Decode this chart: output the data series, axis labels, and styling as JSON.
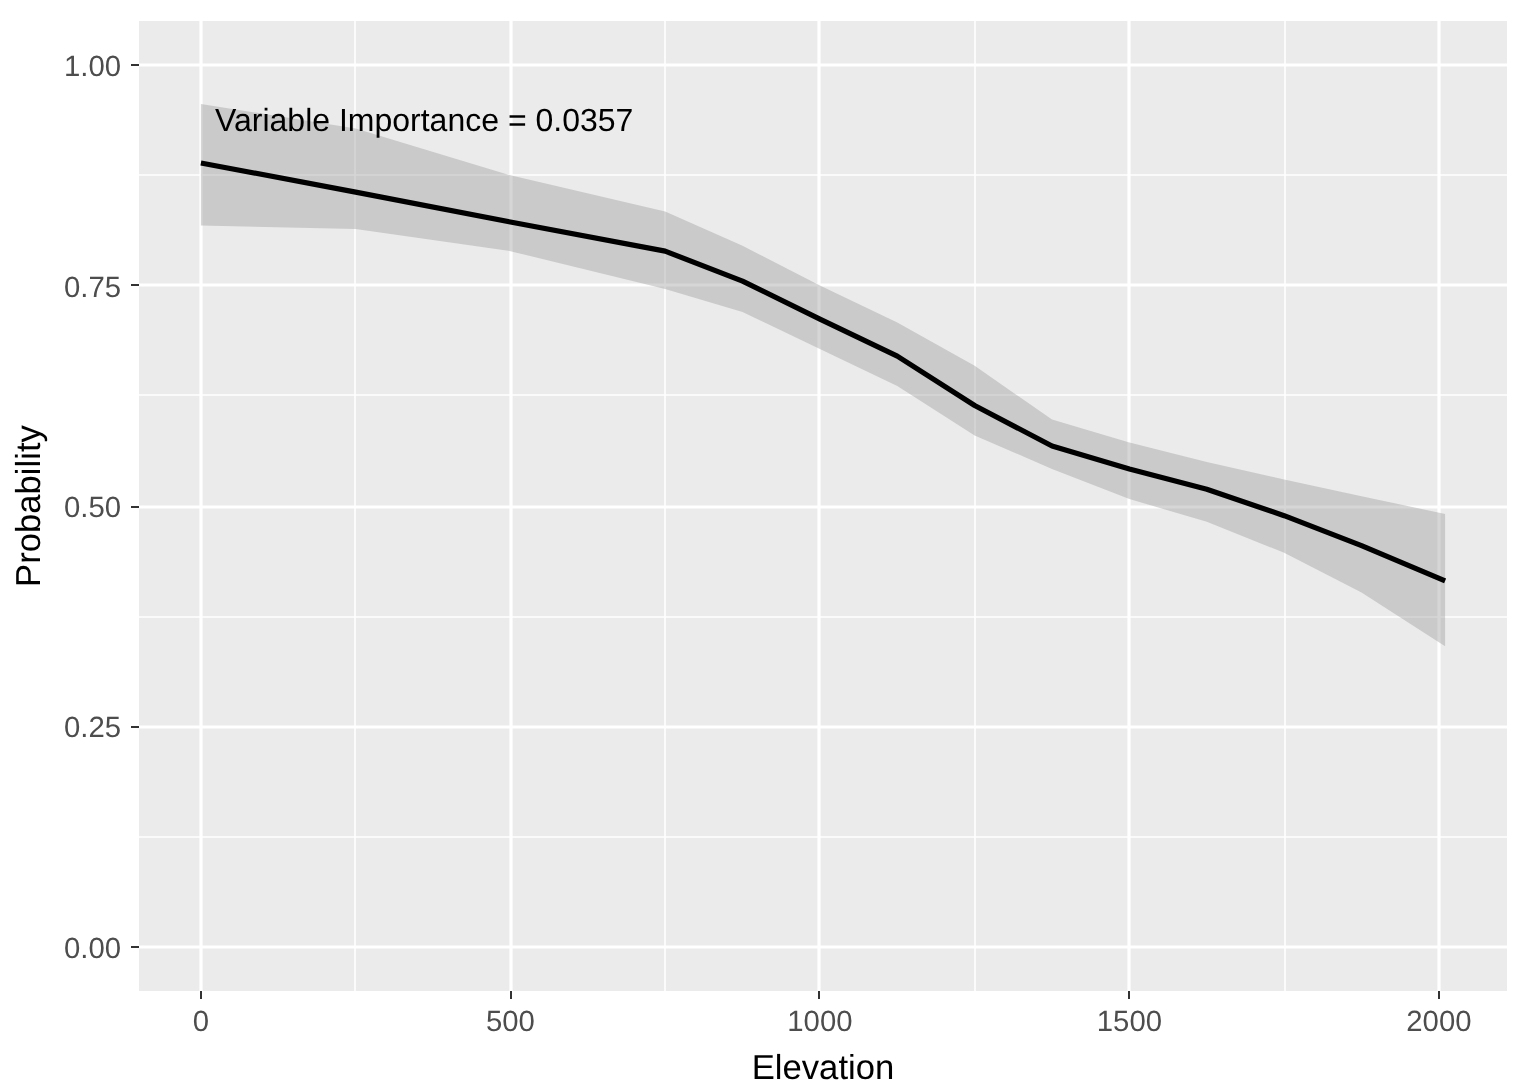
{
  "chart_data": {
    "type": "line",
    "xlabel": "Elevation",
    "ylabel": "Probability",
    "annotations": [
      "Variable Importance = 0.0357"
    ],
    "x": [
      0,
      250,
      500,
      750,
      875,
      1000,
      1125,
      1250,
      1375,
      1500,
      1625,
      1750,
      1875,
      2010
    ],
    "series": [
      {
        "color": "#000000",
        "values": [
          0.889,
          0.856,
          0.822,
          0.789,
          0.755,
          0.712,
          0.67,
          0.614,
          0.568,
          0.542,
          0.519,
          0.489,
          0.455,
          0.415
        ],
        "lower": [
          0.818,
          0.814,
          0.789,
          0.746,
          0.72,
          0.678,
          0.636,
          0.58,
          0.542,
          0.508,
          0.482,
          0.447,
          0.402,
          0.341
        ],
        "upper": [
          0.956,
          0.928,
          0.875,
          0.834,
          0.795,
          0.75,
          0.708,
          0.659,
          0.598,
          0.572,
          0.55,
          0.53,
          0.511,
          0.491
        ]
      }
    ],
    "xlim": [
      -100,
      2110
    ],
    "ylim": [
      -0.05,
      1.05
    ],
    "xticks": [
      0,
      500,
      1000,
      1500,
      2000
    ],
    "yticks": [
      {
        "value": 0,
        "label": "0.00"
      },
      {
        "value": 0.25,
        "label": "0.25"
      },
      {
        "value": 0.5,
        "label": "0.50"
      },
      {
        "value": 0.75,
        "label": "0.75"
      },
      {
        "value": 1,
        "label": "1.00"
      }
    ],
    "grid": true,
    "marker": "none",
    "line_style": "solid"
  }
}
